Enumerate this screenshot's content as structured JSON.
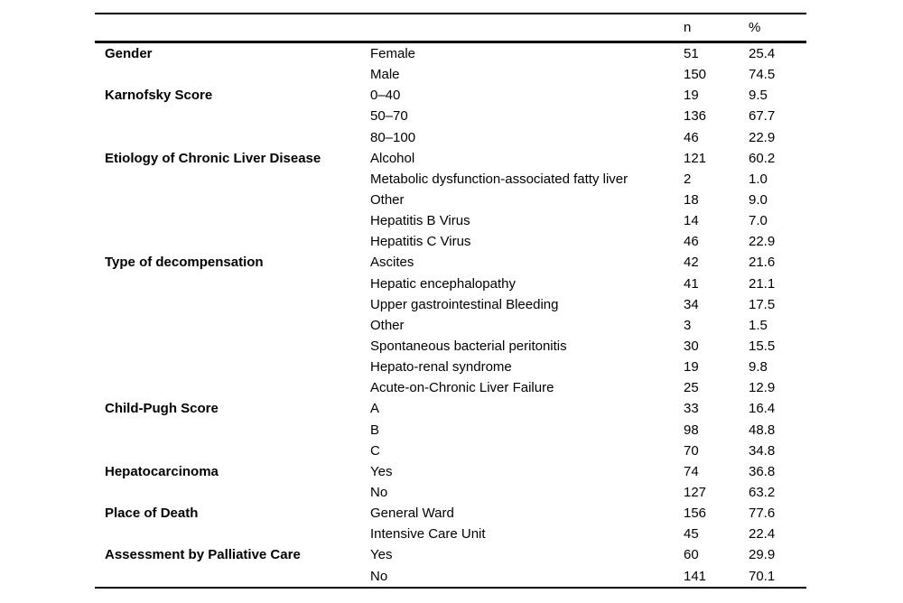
{
  "page": {
    "background": "#ffffff",
    "text_color": "#000000",
    "rule_color": "#000000"
  },
  "table": {
    "header": {
      "category": "",
      "subcategory": "",
      "n": "n",
      "pct": "%"
    },
    "groups": [
      {
        "category": "Gender",
        "items": [
          {
            "label": "Female",
            "n": "51",
            "pct": "25.4"
          },
          {
            "label": "Male",
            "n": "150",
            "pct": "74.5"
          }
        ]
      },
      {
        "category": "Karnofsky Score",
        "items": [
          {
            "label": "0–40",
            "n": "19",
            "pct": "9.5"
          },
          {
            "label": "50–70",
            "n": "136",
            "pct": "67.7"
          },
          {
            "label": "80–100",
            "n": "46",
            "pct": "22.9"
          }
        ]
      },
      {
        "category": "Etiology of Chronic Liver Disease",
        "items": [
          {
            "label": "Alcohol",
            "n": "121",
            "pct": "60.2"
          },
          {
            "label": "Metabolic dysfunction-associated fatty liver",
            "n": "2",
            "pct": "1.0"
          },
          {
            "label": "Other",
            "n": "18",
            "pct": "9.0"
          },
          {
            "label": "Hepatitis B Virus",
            "n": "14",
            "pct": "7.0"
          },
          {
            "label": "Hepatitis C Virus",
            "n": "46",
            "pct": "22.9"
          }
        ]
      },
      {
        "category": "Type of decompensation",
        "items": [
          {
            "label": "Ascites",
            "n": "42",
            "pct": "21.6"
          },
          {
            "label": "Hepatic encephalopathy",
            "n": "41",
            "pct": "21.1"
          },
          {
            "label": "Upper gastrointestinal Bleeding",
            "n": "34",
            "pct": "17.5"
          },
          {
            "label": "Other",
            "n": "3",
            "pct": "1.5"
          },
          {
            "label": "Spontaneous bacterial peritonitis",
            "n": "30",
            "pct": "15.5"
          },
          {
            "label": "Hepato-renal syndrome",
            "n": "19",
            "pct": "9.8"
          },
          {
            "label": "Acute-on-Chronic Liver Failure",
            "n": "25",
            "pct": "12.9"
          }
        ]
      },
      {
        "category": "Child-Pugh Score",
        "items": [
          {
            "label": "A",
            "n": "33",
            "pct": "16.4"
          },
          {
            "label": "B",
            "n": "98",
            "pct": "48.8"
          },
          {
            "label": "C",
            "n": "70",
            "pct": "34.8"
          }
        ]
      },
      {
        "category": "Hepatocarcinoma",
        "items": [
          {
            "label": "Yes",
            "n": "74",
            "pct": "36.8"
          },
          {
            "label": "No",
            "n": "127",
            "pct": "63.2"
          }
        ]
      },
      {
        "category": "Place of Death",
        "items": [
          {
            "label": "General Ward",
            "n": "156",
            "pct": "77.6"
          },
          {
            "label": "Intensive Care Unit",
            "n": "45",
            "pct": "22.4"
          }
        ]
      },
      {
        "category": "Assessment by Palliative Care",
        "items": [
          {
            "label": "Yes",
            "n": "60",
            "pct": "29.9"
          },
          {
            "label": "No",
            "n": "141",
            "pct": "70.1"
          }
        ]
      }
    ]
  }
}
